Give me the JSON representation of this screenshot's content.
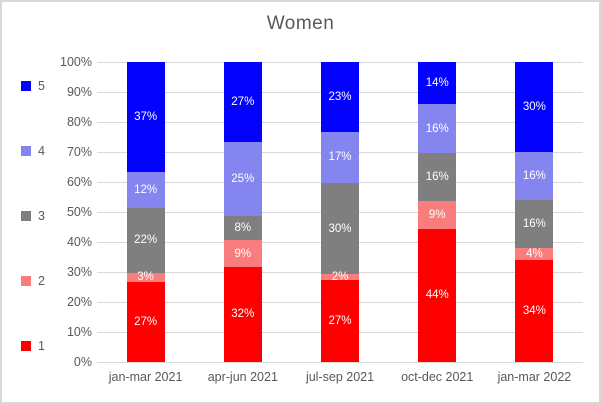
{
  "chart_data": {
    "type": "bar",
    "subtype": "100-percent-stacked-column",
    "title": "Women",
    "categories": [
      "jan-mar 2021",
      "apr-jun 2021",
      "jul-sep 2021",
      "oct-dec 2021",
      "jan-mar 2022"
    ],
    "series": [
      {
        "name": "1",
        "color": "#FF0000",
        "values": [
          27,
          32,
          27,
          44,
          34
        ]
      },
      {
        "name": "2",
        "color": "#FA7D7D",
        "values": [
          3,
          9,
          2,
          9,
          4
        ]
      },
      {
        "name": "3",
        "color": "#7F7F7F",
        "values": [
          22,
          8,
          30,
          16,
          16
        ]
      },
      {
        "name": "4",
        "color": "#8585F0",
        "values": [
          12,
          25,
          17,
          16,
          16
        ]
      },
      {
        "name": "5",
        "color": "#0202FE",
        "values": [
          37,
          27,
          23,
          14,
          30
        ]
      }
    ],
    "stack_order_bottom_to_top": [
      "1",
      "2",
      "3",
      "4",
      "5"
    ],
    "data_label_suffix": "%",
    "data_label_color": "#FFFFFF",
    "yticks": [
      "0%",
      "10%",
      "20%",
      "30%",
      "40%",
      "50%",
      "60%",
      "70%",
      "80%",
      "90%",
      "100%"
    ],
    "ylim": [
      0,
      100
    ],
    "grid": true,
    "legend": {
      "position": "left",
      "order_top_to_bottom": [
        "5",
        "4",
        "3",
        "2",
        "1"
      ]
    },
    "styles": {
      "title_color": "#595959",
      "axis_text_color": "#595959",
      "legend_text_color": "#595959",
      "gridline_color": "#D9D9D9",
      "frame_border_color": "#D8D8D8",
      "background": "#FFFFFF"
    }
  }
}
